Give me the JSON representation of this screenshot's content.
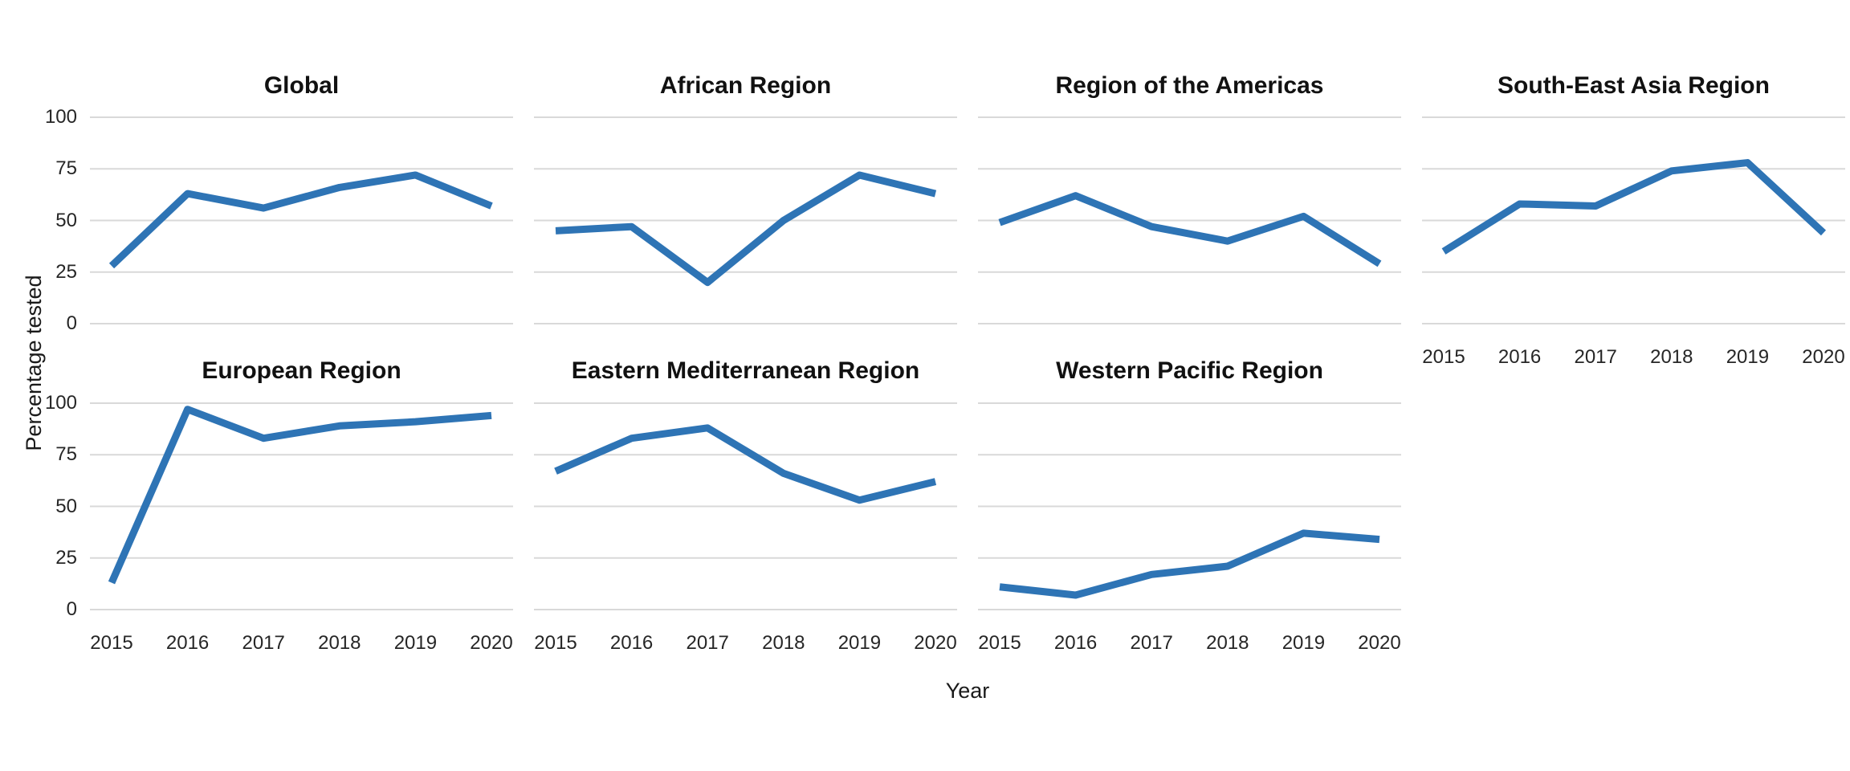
{
  "chart_data": {
    "type": "line",
    "title": "",
    "xlabel": "Year",
    "ylabel": "Percentage tested",
    "x": [
      "2015",
      "2016",
      "2017",
      "2018",
      "2019",
      "2020"
    ],
    "ylim": [
      0,
      100
    ],
    "yticks": [
      0,
      25,
      50,
      75,
      100
    ],
    "grid": "horizontal-only",
    "legend": "none",
    "line_color": "#2E74B5",
    "grid_color": "#D9D9D9",
    "tick_text_color": "#262626",
    "title_text_color": "#111111",
    "facets": [
      {
        "title": "Global",
        "row": 0,
        "col": 0,
        "values": [
          28,
          63,
          56,
          66,
          72,
          57
        ]
      },
      {
        "title": "African Region",
        "row": 0,
        "col": 1,
        "values": [
          45,
          47,
          20,
          50,
          72,
          63
        ]
      },
      {
        "title": "Region of the Americas",
        "row": 0,
        "col": 2,
        "values": [
          49,
          62,
          47,
          40,
          52,
          29
        ]
      },
      {
        "title": "South-East Asia Region",
        "row": 0,
        "col": 3,
        "values": [
          35,
          58,
          57,
          74,
          78,
          44
        ]
      },
      {
        "title": "European Region",
        "row": 1,
        "col": 0,
        "values": [
          13,
          97,
          83,
          89,
          91,
          94
        ]
      },
      {
        "title": "Eastern Mediterranean Region",
        "row": 1,
        "col": 1,
        "values": [
          67,
          83,
          88,
          66,
          53,
          62
        ]
      },
      {
        "title": "Western Pacific Region",
        "row": 1,
        "col": 2,
        "values": [
          11,
          7,
          17,
          21,
          37,
          34
        ]
      }
    ]
  }
}
